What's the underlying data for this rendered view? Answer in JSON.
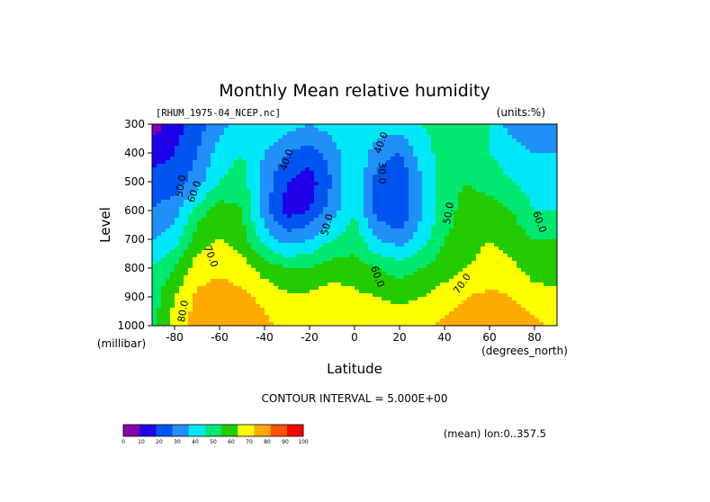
{
  "chart_data": {
    "type": "heatmap",
    "title": "Monthly Mean relative humidity",
    "dataset_label": "[RHUM_1975-04_NCEP.nc]",
    "units_label": "(units:%)",
    "xlabel": "Latitude",
    "x_units_label": "(degrees_north)",
    "ylabel": "Level",
    "y_units_label": "(millibar)",
    "contour_interval_text": "CONTOUR INTERVAL = 5.000E+00",
    "mean_text": "(mean) lon:0..357.5",
    "xlim": [
      -90,
      90
    ],
    "ylim": [
      1000,
      300
    ],
    "x_ticks": [
      -80,
      -60,
      -40,
      -20,
      0,
      20,
      40,
      60,
      80
    ],
    "y_ticks": [
      300,
      400,
      500,
      600,
      700,
      800,
      900,
      1000
    ],
    "x": [
      -90,
      -80,
      -70,
      -60,
      -50,
      -40,
      -30,
      -20,
      -10,
      0,
      10,
      20,
      30,
      40,
      50,
      60,
      70,
      80,
      90
    ],
    "y": [
      300,
      400,
      500,
      600,
      700,
      800,
      900,
      1000
    ],
    "z": [
      [
        5,
        15,
        25,
        35,
        50,
        50,
        45,
        40,
        45,
        50,
        45,
        45,
        50,
        55,
        55,
        50,
        35,
        30,
        30
      ],
      [
        15,
        20,
        30,
        45,
        50,
        40,
        30,
        25,
        35,
        50,
        35,
        30,
        45,
        55,
        55,
        50,
        45,
        40,
        40
      ],
      [
        25,
        25,
        35,
        50,
        55,
        35,
        20,
        15,
        30,
        50,
        25,
        20,
        40,
        55,
        60,
        55,
        50,
        45,
        45
      ],
      [
        30,
        35,
        55,
        65,
        60,
        35,
        15,
        20,
        35,
        50,
        25,
        20,
        40,
        55,
        65,
        65,
        60,
        50,
        50
      ],
      [
        40,
        45,
        65,
        70,
        65,
        45,
        35,
        40,
        50,
        55,
        40,
        35,
        45,
        60,
        65,
        70,
        65,
        60,
        60
      ],
      [
        50,
        60,
        75,
        78,
        75,
        65,
        60,
        60,
        65,
        65,
        60,
        55,
        60,
        65,
        70,
        75,
        72,
        65,
        65
      ],
      [
        55,
        70,
        82,
        85,
        82,
        78,
        72,
        72,
        75,
        72,
        70,
        68,
        70,
        75,
        80,
        82,
        80,
        75,
        72
      ],
      [
        55,
        75,
        85,
        88,
        85,
        82,
        78,
        78,
        80,
        78,
        75,
        75,
        78,
        82,
        85,
        88,
        85,
        82,
        78
      ]
    ],
    "contour_labels": [
      {
        "text": "40.0",
        "x": -30,
        "y": 425,
        "rotate": -70
      },
      {
        "text": "40.0",
        "x": 12,
        "y": 365,
        "rotate": -70
      },
      {
        "text": "30.0",
        "x": 12,
        "y": 470,
        "rotate": 90
      },
      {
        "text": "50.0",
        "x": -77,
        "y": 515,
        "rotate": -80
      },
      {
        "text": "60.0",
        "x": -71,
        "y": 535,
        "rotate": -70
      },
      {
        "text": "50.0",
        "x": -12,
        "y": 650,
        "rotate": -75
      },
      {
        "text": "50.0",
        "x": 42,
        "y": 610,
        "rotate": -80
      },
      {
        "text": "60.0",
        "x": 82,
        "y": 640,
        "rotate": 70
      },
      {
        "text": "70.0",
        "x": -64,
        "y": 760,
        "rotate": 70
      },
      {
        "text": "60.0",
        "x": 10,
        "y": 830,
        "rotate": 70
      },
      {
        "text": "70.0",
        "x": 48,
        "y": 855,
        "rotate": -55
      },
      {
        "text": "80.0",
        "x": -76,
        "y": 950,
        "rotate": -80
      }
    ],
    "colorbar": {
      "ticks": [
        "0",
        "10",
        "20",
        "30",
        "40",
        "50",
        "60",
        "70",
        "80",
        "90",
        "100"
      ],
      "colors": [
        "#8800aa",
        "#1f00e8",
        "#0055f0",
        "#2090f8",
        "#00e8f8",
        "#00e870",
        "#22cc00",
        "#ffff00",
        "#ffaa00",
        "#ff5500",
        "#ff0000"
      ]
    },
    "grid": false,
    "legend": "colorbar bottom-left"
  }
}
